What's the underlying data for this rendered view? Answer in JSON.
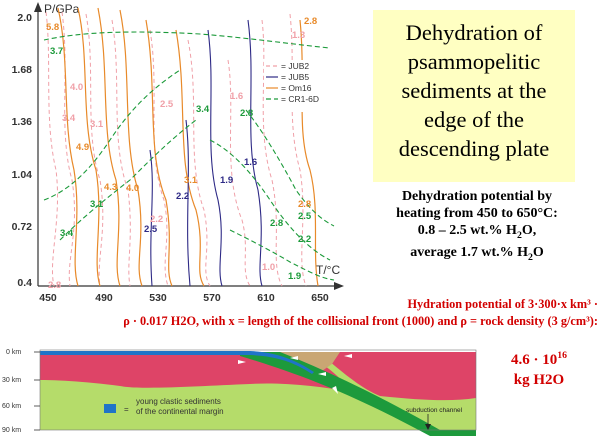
{
  "chart": {
    "y_axis_label": "P/GPa",
    "x_axis_label": "T/°C",
    "y_ticks": [
      "2.0",
      "1.68",
      "1.36",
      "1.04",
      "0.72",
      "0.4"
    ],
    "x_ticks": [
      "450",
      "490",
      "530",
      "570",
      "610",
      "650"
    ],
    "legend": [
      {
        "label": "= JUB2",
        "color": "#f0a0a8",
        "dash": "4,3"
      },
      {
        "label": "= JUB5",
        "color": "#2e2a86",
        "dash": ""
      },
      {
        "label": "= Om16",
        "color": "#e88a2a",
        "dash": ""
      },
      {
        "label": "= CR1-6D",
        "color": "#1c9a3a",
        "dash": "5,3"
      }
    ],
    "contour_labels": [
      {
        "text": "5.8",
        "color": "#e88a2a"
      },
      {
        "text": "3.7",
        "color": "#1c9a3a"
      },
      {
        "text": "2.8",
        "color": "#e88a2a"
      },
      {
        "text": "1.3",
        "color": "#f0a0a8"
      },
      {
        "text": "4.0",
        "color": "#f0a0a8"
      },
      {
        "text": "3.4",
        "color": "#f0a0a8"
      },
      {
        "text": "3.1",
        "color": "#f0a0a8"
      },
      {
        "text": "4.9",
        "color": "#e88a2a"
      },
      {
        "text": "2.5",
        "color": "#f0a0a8"
      },
      {
        "text": "3.4",
        "color": "#1c9a3a"
      },
      {
        "text": "1.6",
        "color": "#f0a0a8"
      },
      {
        "text": "2.8",
        "color": "#1c9a3a"
      },
      {
        "text": "1.6",
        "color": "#2e2a86"
      },
      {
        "text": "4.3",
        "color": "#e88a2a"
      },
      {
        "text": "4.0",
        "color": "#e88a2a"
      },
      {
        "text": "3.1",
        "color": "#e88a2a"
      },
      {
        "text": "1.9",
        "color": "#2e2a86"
      },
      {
        "text": "2.2",
        "color": "#2e2a86"
      },
      {
        "text": "3.1",
        "color": "#1c9a3a"
      },
      {
        "text": "2.8",
        "color": "#e88a2a"
      },
      {
        "text": "2.5",
        "color": "#1c9a3a"
      },
      {
        "text": "3.4",
        "color": "#1c9a3a"
      },
      {
        "text": "2.2",
        "color": "#f0a0a8"
      },
      {
        "text": "2.5",
        "color": "#2e2a86"
      },
      {
        "text": "2.8",
        "color": "#1c9a3a"
      },
      {
        "text": "2.2",
        "color": "#1c9a3a"
      },
      {
        "text": "1.0",
        "color": "#f0a0a8"
      },
      {
        "text": "1.9",
        "color": "#1c9a3a"
      },
      {
        "text": "2.8",
        "color": "#f0a0a8"
      }
    ]
  },
  "title": [
    "Dehydration of",
    "psammopelitic",
    "sediments at the",
    "edge of the",
    "descending plate"
  ],
  "dehydration": {
    "line1": "Dehydration potential by",
    "line2": "heating from 450 to 650°C:",
    "line3": "0.8 – 2.5 wt.% H",
    "line3_sub": "2",
    "line3_end": "O,",
    "line4": "average 1.7 wt.% H",
    "line4_sub": "2",
    "line4_end": "O"
  },
  "hydration": {
    "line1": "Hydration potential of 3·300·x km³ ·",
    "line2": "ρ · 0.017 H2O, with x = length of the collisional front (1000) and ρ = rock density (3 g/cm³):"
  },
  "result": {
    "line1": "4.6 · 10",
    "line1_sup": "16",
    "line2": "kg H2O"
  },
  "section": {
    "depth_labels": [
      "0 km",
      "30 km",
      "60 km",
      "90 km"
    ],
    "legend_symbol": "=",
    "legend_line1": "young clastic sediments",
    "legend_line2": "of the continental margin",
    "channel_label": "subduction channel",
    "colors": {
      "crust": "#de4467",
      "mantle": "#b5dc6a",
      "slab": "#1d9a3c",
      "sediment": "#1f74c8",
      "wedge": "#c9a673"
    }
  }
}
